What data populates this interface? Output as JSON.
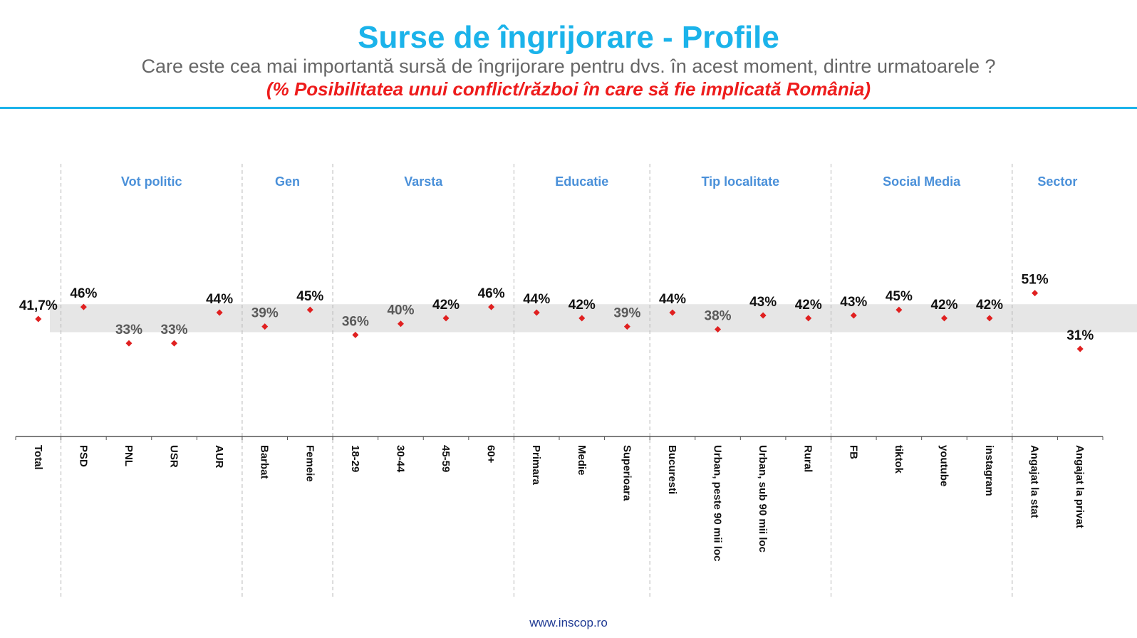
{
  "title": "Surse de îngrijorare - Profile",
  "subtitle": "Care este cea mai importantă sursă de îngrijorare pentru dvs. în acest moment, dintre urmatoarele ?",
  "highlight": "(% Posibilitatea unui conflict/război în care să fie implicată România)",
  "footer": "www.inscop.ro",
  "colors": {
    "title": "#1bb3ea",
    "marker": "#e02020",
    "group_label": "#4a90d9",
    "band": "#e6e6e6"
  },
  "chart_data": {
    "type": "scatter",
    "categories": [
      "Total",
      "PSD",
      "PNL",
      "USR",
      "AUR",
      "Barbat",
      "Femeie",
      "18-29",
      "30-44",
      "45-59",
      "60+",
      "Primara",
      "Medie",
      "Superioara",
      "Bucuresti",
      "Urban, peste 90 mii loc",
      "Urban, sub 90 mii loc",
      "Rural",
      "FB",
      "tiktok",
      "youtube",
      "instagram",
      "Angajat la stat",
      "Angajat la privat"
    ],
    "values": [
      41.7,
      46,
      33,
      33,
      44,
      39,
      45,
      36,
      40,
      42,
      46,
      44,
      42,
      39,
      44,
      38,
      43,
      42,
      43,
      45,
      42,
      42,
      51,
      31
    ],
    "labels": [
      "41,7%",
      "46%",
      "33%",
      "33%",
      "44%",
      "39%",
      "45%",
      "36%",
      "40%",
      "42%",
      "46%",
      "44%",
      "42%",
      "39%",
      "44%",
      "38%",
      "43%",
      "42%",
      "43%",
      "45%",
      "42%",
      "42%",
      "51%",
      "31%"
    ],
    "groups": [
      {
        "label": "Vot politic",
        "start": 1,
        "end": 4
      },
      {
        "label": "Gen",
        "start": 5,
        "end": 6
      },
      {
        "label": "Varsta",
        "start": 7,
        "end": 10
      },
      {
        "label": "Educatie",
        "start": 11,
        "end": 13
      },
      {
        "label": "Tip localitate",
        "start": 14,
        "end": 17
      },
      {
        "label": "Social Media",
        "start": 18,
        "end": 21
      },
      {
        "label": "Sector",
        "start": 22,
        "end": 23
      }
    ],
    "band": [
      37,
      47
    ],
    "ylim": [
      0,
      100
    ],
    "marker": "diamond"
  }
}
